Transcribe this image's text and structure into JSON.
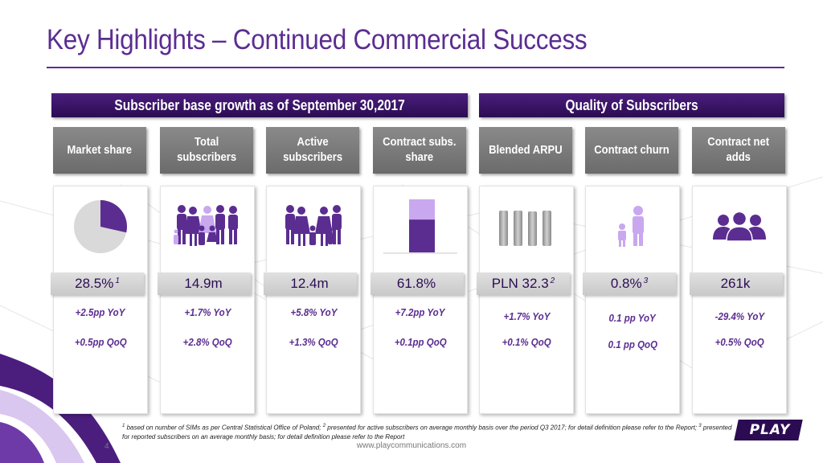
{
  "title": "Key Highlights – Continued Commercial Success",
  "banners": {
    "left": "Subscriber base growth as of September 30,2017",
    "right": "Quality of Subscribers"
  },
  "columns": [
    {
      "header": "Market share",
      "value": "28.5%",
      "value_sup": "1",
      "yoy": "+2.5pp YoY",
      "qoq": "+0.5pp QoQ",
      "icon": "pie-icon"
    },
    {
      "header": "Total\nsubscribers",
      "value": "14.9m",
      "value_sup": "",
      "yoy": "+1.7% YoY",
      "qoq": "+2.8% QoQ",
      "icon": "family-large-icon"
    },
    {
      "header": "Active\nsubscribers",
      "value": "12.4m",
      "value_sup": "",
      "yoy": "+5.8% YoY",
      "qoq": "+1.3% QoQ",
      "icon": "family-icon"
    },
    {
      "header": "Contract subs.\nshare",
      "value": "61.8%",
      "value_sup": "",
      "yoy": "+7.2pp YoY",
      "qoq": "+0.1pp QoQ",
      "icon": "stacked-bar-icon"
    },
    {
      "header": "Blended ARPU",
      "value": "PLN 32.3",
      "value_sup": "2",
      "yoy": "+1.7% YoY",
      "qoq": "+0.1% QoQ",
      "icon": "bars-icon"
    },
    {
      "header": "Contract churn",
      "value": "0.8%",
      "value_sup": "3",
      "yoy": "0.1 pp YoY",
      "qoq": "0.1 pp QoQ",
      "icon": "parent-child-icon"
    },
    {
      "header": "Contract net\nadds",
      "value": "261k",
      "value_sup": "",
      "yoy": "-29.4% YoY",
      "qoq": "+0.5% QoQ",
      "icon": "group-icon"
    }
  ],
  "market_share_fraction": 0.285,
  "contract_share_fraction": 0.618,
  "footnote": {
    "n1": "1",
    "t1": " based on number of SIMs as per Central Statistical Office of Poland; ",
    "n2": "2",
    "t2": " presented for active subscribers on average monthly basis over the period Q3 2017; for detail definition please refer to the Report; ",
    "n3": "3",
    "t3": " presented for reported subscribers on an average monthly basis; for detail definition please refer to the Report"
  },
  "page_number": "4",
  "website": "www.playcommunications.com",
  "logo_text": "PLAY",
  "colors": {
    "brand_purple": "#5b2d91",
    "dark_purple": "#2b0c52",
    "light_purple": "#c9a8ef",
    "header_gray": "#7a7a7a"
  }
}
